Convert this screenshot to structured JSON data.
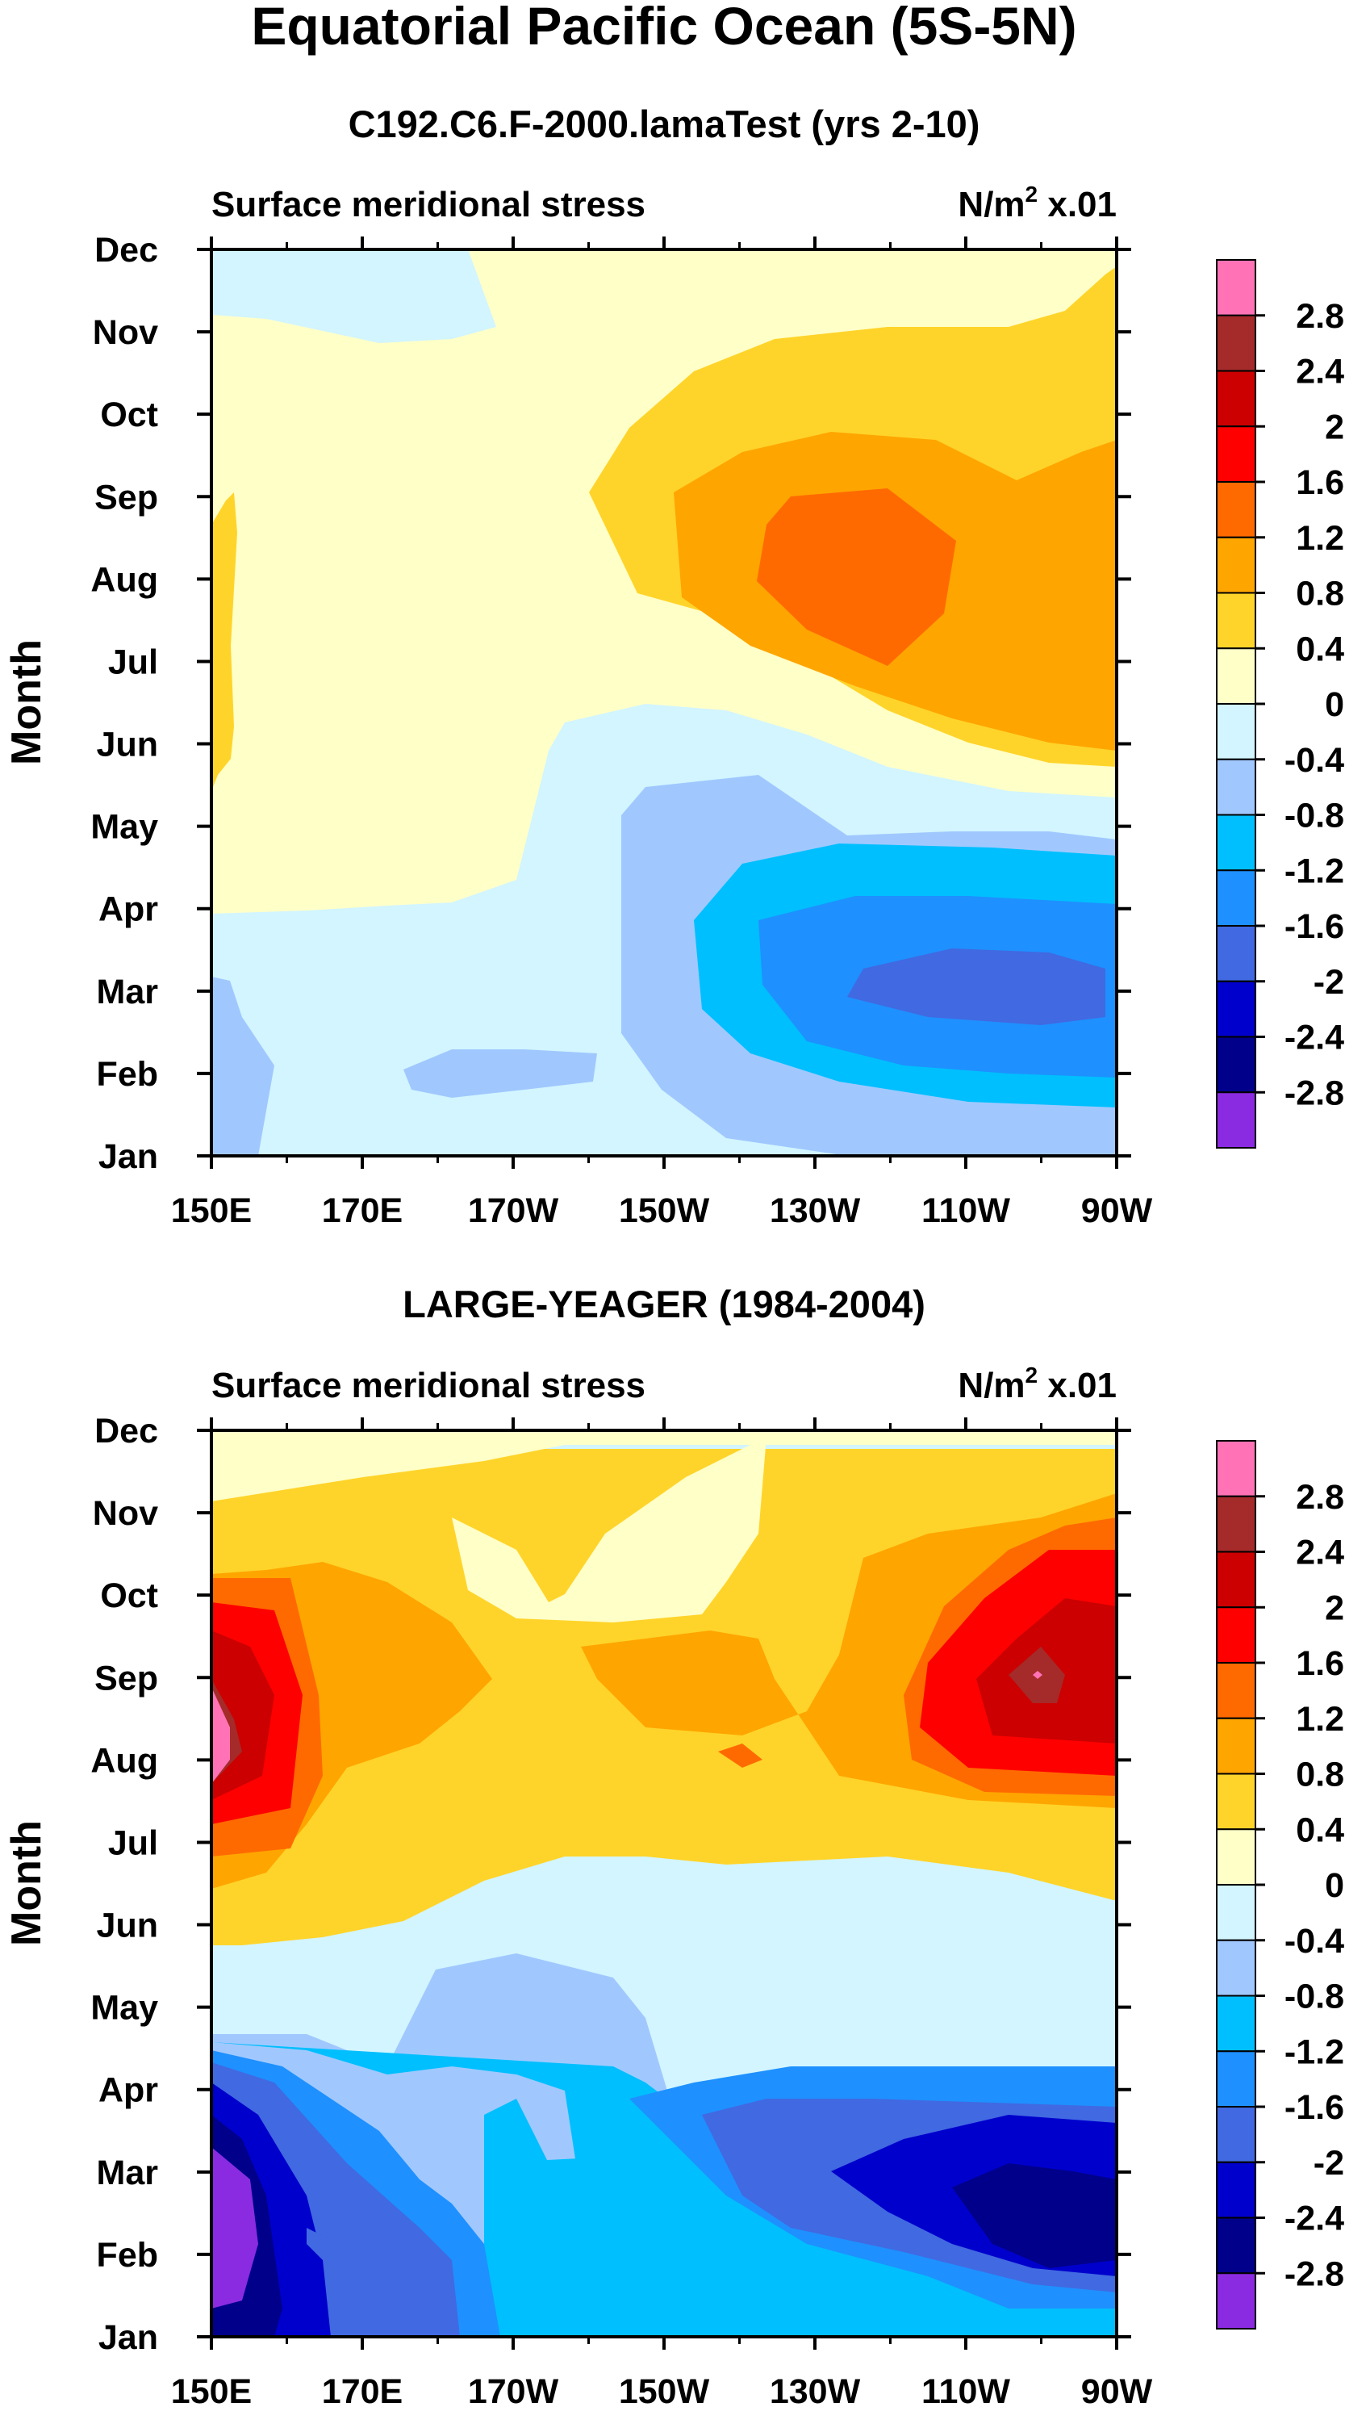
{
  "figure": {
    "title": "Equatorial Pacific Ocean (5S-5N)"
  },
  "colormap": {
    "levels": [
      "2.8",
      "2.4",
      "2",
      "1.6",
      "1.2",
      "0.8",
      "0.4",
      "0",
      "-0.4",
      "-0.8",
      "-1.2",
      "-1.6",
      "-2",
      "-2.4",
      "-2.8"
    ],
    "colors": [
      "#ff73b6",
      "#a52a2a",
      "#cc0000",
      "#ff0000",
      "#ff6a00",
      "#ffa500",
      "#ffd42a",
      "#ffffc8",
      "#d2f5ff",
      "#a0c8ff",
      "#00bfff",
      "#1e90ff",
      "#4169e1",
      "#0000cd",
      "#00008b",
      "#8a2be2"
    ]
  },
  "chart_data": [
    {
      "type": "heatmap",
      "panel_title": "C192.C6.F-2000.lamaTest (yrs 2-10)",
      "left_label": "Surface meridional stress",
      "right_label": "N/m",
      "right_label_sup": "2",
      "right_label_suffix": " x.01",
      "ylabel": "Month",
      "x_tick_labels": [
        "150E",
        "170E",
        "170W",
        "150W",
        "130W",
        "110W",
        "90W"
      ],
      "y_tick_labels": [
        "Jan",
        "Feb",
        "Mar",
        "Apr",
        "May",
        "Jun",
        "Jul",
        "Aug",
        "Sep",
        "Oct",
        "Nov",
        "Dec"
      ],
      "xlim": [
        150,
        270
      ],
      "ylim": [
        0,
        11
      ],
      "z_units": "N/m^2 x.01",
      "z_range": [
        -2.0,
        1.6
      ],
      "features": [
        {
          "description": "Max near 125W in Aug",
          "lon": 235,
          "month": 7.0,
          "value": 1.4
        },
        {
          "description": "Min near 110W in Mar",
          "lon": 252,
          "month": 2.0,
          "value": -1.8
        },
        {
          "description": "Weak positive 150E Jun-Sep",
          "lon": 151,
          "month": 6.5,
          "value": 0.3
        },
        {
          "description": "Weak negative 165E-170W Feb",
          "lon": 195,
          "month": 1.0,
          "value": -0.5
        }
      ]
    },
    {
      "type": "heatmap",
      "panel_title": "LARGE-YEAGER (1984-2004)",
      "left_label": "Surface meridional stress",
      "right_label": "N/m",
      "right_label_sup": "2",
      "right_label_suffix": " x.01",
      "ylabel": "Month",
      "x_tick_labels": [
        "150E",
        "170E",
        "170W",
        "150W",
        "130W",
        "110W",
        "90W"
      ],
      "y_tick_labels": [
        "Jan",
        "Feb",
        "Mar",
        "Apr",
        "May",
        "Jun",
        "Jul",
        "Aug",
        "Sep",
        "Oct",
        "Nov",
        "Dec"
      ],
      "xlim": [
        150,
        270
      ],
      "ylim": [
        0,
        11
      ],
      "z_units": "N/m^2 x.01",
      "z_range": [
        -3.0,
        3.0
      ],
      "features": [
        {
          "description": "Strong max 150E Aug",
          "lon": 152,
          "month": 7.5,
          "value": 2.9
        },
        {
          "description": "Max near 100W Sep",
          "lon": 260,
          "month": 8.0,
          "value": 2.6
        },
        {
          "description": "Min near 100W Mar",
          "lon": 260,
          "month": 2.0,
          "value": -2.6
        },
        {
          "description": "Min 150E Feb",
          "lon": 153,
          "month": 1.0,
          "value": -3.0
        }
      ]
    }
  ]
}
